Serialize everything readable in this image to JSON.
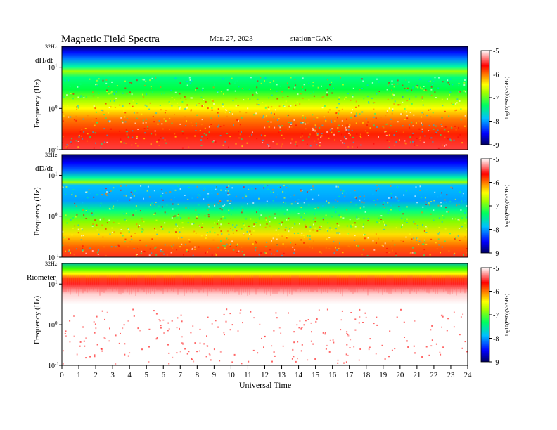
{
  "header": {
    "title": "Magnetic  Field  Spectra",
    "date": "Mar. 27, 2023",
    "station": "station=GAK"
  },
  "chart_data": [
    {
      "type": "heatmap",
      "panel_label": "dH/dt",
      "ylabel": "Frequency (Hz)",
      "y_top_label": "32Hz",
      "yticks": [
        {
          "exp": "1",
          "value": 10
        },
        {
          "exp": "0",
          "value": 1
        },
        {
          "exp": "-1",
          "value": 0.1
        }
      ],
      "ylim": [
        0.1,
        32
      ],
      "y_scale": "log",
      "xlim": [
        0,
        24
      ],
      "colorbar": {
        "label": "log10(PSD)(V^2/Hz)",
        "ticks": [
          "-5",
          "-6",
          "-7",
          "-8",
          "-9"
        ],
        "range": [
          -9,
          -5
        ]
      },
      "colormap": [
        "#000080",
        "#0000ff",
        "#00c0ff",
        "#00ff80",
        "#80ff00",
        "#ffff00",
        "#ff8000",
        "#ff0000",
        "#ffffff"
      ]
    },
    {
      "type": "heatmap",
      "panel_label": "dD/dt",
      "ylabel": "Frequency (Hz)",
      "y_top_label": "32Hz",
      "yticks": [
        {
          "exp": "1",
          "value": 10
        },
        {
          "exp": "0",
          "value": 1
        },
        {
          "exp": "-1",
          "value": 0.1
        }
      ],
      "ylim": [
        0.1,
        32
      ],
      "y_scale": "log",
      "xlim": [
        0,
        24
      ],
      "colorbar": {
        "label": "log10(PSD)(V^2/Hz)",
        "ticks": [
          "-5",
          "-6",
          "-7",
          "-8",
          "-9"
        ],
        "range": [
          -9,
          -5
        ]
      }
    },
    {
      "type": "heatmap",
      "panel_label": "Riometer",
      "ylabel": "Frequency (Hz)",
      "y_top_label": "32Hz",
      "yticks": [
        {
          "exp": "1",
          "value": 10
        },
        {
          "exp": "0",
          "value": 1
        },
        {
          "exp": "-1",
          "value": 0.1
        }
      ],
      "ylim": [
        0.1,
        32
      ],
      "y_scale": "log",
      "xlim": [
        0,
        24
      ],
      "colorbar": {
        "label": "log10(PSD)(V^2/Hz)",
        "ticks": [
          "-5",
          "-6",
          "-7",
          "-8",
          "-9"
        ],
        "range": [
          -9,
          -5
        ]
      }
    }
  ],
  "x_axis": {
    "label": "Universal Time",
    "ticks": [
      "0",
      "1",
      "2",
      "3",
      "4",
      "5",
      "6",
      "7",
      "8",
      "9",
      "10",
      "11",
      "12",
      "13",
      "14",
      "15",
      "16",
      "17",
      "18",
      "19",
      "20",
      "21",
      "22",
      "23",
      "24"
    ]
  }
}
